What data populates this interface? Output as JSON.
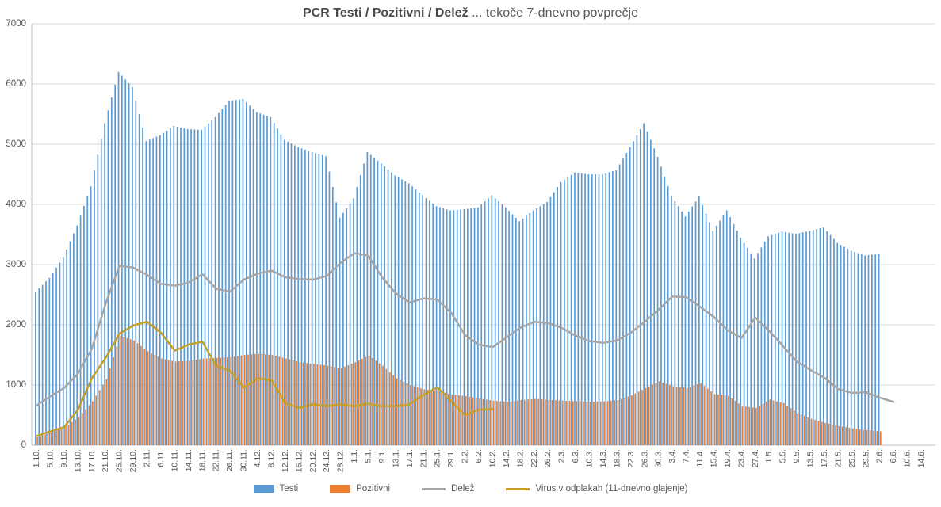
{
  "title": {
    "bold": "PCR Testi / Pozitivni / Delež",
    "regular": " ... tekoče 7-dnevno povprečje"
  },
  "chart_data": {
    "type": "bar",
    "subtype": "combo bar+line, daily values shown as clustered bars with overlaid lines",
    "title": "PCR Testi / Pozitivni / Delež ... tekoče 7-dnevno povprečje",
    "xlabel": "",
    "ylabel": "",
    "grid": "horizontal",
    "legend_position": "bottom",
    "text_color": "#595959",
    "grid_color": "#D9D9D9",
    "axis_color": "#BFBFBF",
    "y_axis": {
      "min": 0,
      "max": 7000,
      "tick_step": 1000,
      "tick_labels": [
        "0",
        "1000",
        "2000",
        "3000",
        "4000",
        "5000",
        "6000",
        "7000"
      ]
    },
    "x_tick_labels": [
      "1.10.",
      "5.10.",
      "9.10.",
      "13.10.",
      "17.10.",
      "21.10.",
      "25.10.",
      "29.10.",
      "2.11.",
      "6.11.",
      "10.11.",
      "14.11.",
      "18.11.",
      "22.11.",
      "26.11.",
      "30.11.",
      "4.12.",
      "8.12.",
      "12.12.",
      "16.12.",
      "20.12.",
      "24.12.",
      "28.12.",
      "1.1.",
      "5.1.",
      "9.1.",
      "13.1.",
      "17.1.",
      "21.1.",
      "25.1.",
      "29.1.",
      "2.2.",
      "6.2.",
      "10.2.",
      "14.2.",
      "18.2.",
      "22.2.",
      "26.2.",
      "2.3.",
      "6.3.",
      "10.3.",
      "14.3.",
      "18.3.",
      "22.3.",
      "26.3.",
      "30.3.",
      "3.4.",
      "7.4.",
      "11.4.",
      "15.4.",
      "19.4.",
      "23.4.",
      "27.4.",
      "1.5.",
      "5.5.",
      "9.5.",
      "13.5.",
      "17.5.",
      "21.5.",
      "25.5.",
      "29.5.",
      "2.6.",
      "6.6.",
      "10.6.",
      "14.6."
    ],
    "days_per_tick": 4,
    "note_sampling": "values read at each labelled tick date; underlying chart shows daily 7-day rolling averages",
    "series": [
      {
        "name": "Testi",
        "type": "bar",
        "color": "#5B9BD5",
        "values_at_ticks": [
          2550,
          2780,
          3120,
          3650,
          4300,
          5350,
          6200,
          5950,
          5050,
          5150,
          5300,
          5250,
          5240,
          5450,
          5720,
          5750,
          5530,
          5450,
          5070,
          4950,
          4870,
          4800,
          3780,
          4100,
          4870,
          4680,
          4480,
          4350,
          4150,
          3970,
          3900,
          3920,
          3950,
          4150,
          3950,
          3720,
          3900,
          4040,
          4370,
          4530,
          4500,
          4500,
          4570,
          4950,
          5350,
          4790,
          4140,
          3800,
          4130,
          3560,
          3900,
          3450,
          3100,
          3470,
          3550,
          3510,
          3560,
          3620,
          3360,
          3230,
          3150,
          3180,
          null,
          null,
          null
        ]
      },
      {
        "name": "Pozitivni",
        "type": "bar",
        "color": "#ED7D31",
        "values_at_ticks": [
          130,
          210,
          300,
          470,
          730,
          1100,
          1820,
          1740,
          1560,
          1440,
          1390,
          1400,
          1440,
          1450,
          1460,
          1500,
          1520,
          1500,
          1440,
          1380,
          1350,
          1320,
          1280,
          1380,
          1490,
          1320,
          1110,
          1000,
          930,
          905,
          845,
          815,
          775,
          740,
          720,
          750,
          770,
          755,
          740,
          730,
          720,
          730,
          750,
          830,
          950,
          1060,
          980,
          950,
          1030,
          850,
          820,
          650,
          620,
          760,
          700,
          530,
          440,
          370,
          320,
          280,
          250,
          230,
          null,
          null,
          null
        ]
      },
      {
        "name": "Delež",
        "type": "line",
        "color": "#A6A6A6",
        "values_at_ticks": [
          660,
          810,
          950,
          1190,
          1600,
          2350,
          2980,
          2950,
          2830,
          2680,
          2650,
          2700,
          2840,
          2600,
          2550,
          2750,
          2850,
          2900,
          2790,
          2760,
          2750,
          2810,
          3030,
          3190,
          3150,
          2790,
          2520,
          2370,
          2440,
          2420,
          2200,
          1830,
          1670,
          1630,
          1790,
          1950,
          2050,
          2030,
          1950,
          1820,
          1730,
          1700,
          1740,
          1870,
          2050,
          2250,
          2470,
          2460,
          2300,
          2130,
          1910,
          1780,
          2120,
          1900,
          1650,
          1390,
          1250,
          1120,
          930,
          870,
          880,
          790,
          720,
          null,
          null
        ]
      },
      {
        "name": "Virus v odplakah (11-dnevno glajenje)",
        "type": "line",
        "color": "#C5A028",
        "values_at_ticks": [
          150,
          230,
          300,
          590,
          1110,
          1450,
          1850,
          1990,
          2050,
          1870,
          1570,
          1670,
          1720,
          1320,
          1240,
          950,
          1110,
          1080,
          700,
          620,
          680,
          650,
          680,
          650,
          690,
          650,
          650,
          680,
          840,
          960,
          730,
          500,
          590,
          600,
          null,
          null,
          null,
          null,
          null,
          null,
          null,
          null,
          null,
          null,
          null,
          null,
          null,
          null,
          null,
          null,
          null,
          null,
          null,
          null,
          null,
          null,
          null,
          null,
          null,
          null,
          null,
          null,
          null,
          null,
          null
        ]
      }
    ]
  }
}
